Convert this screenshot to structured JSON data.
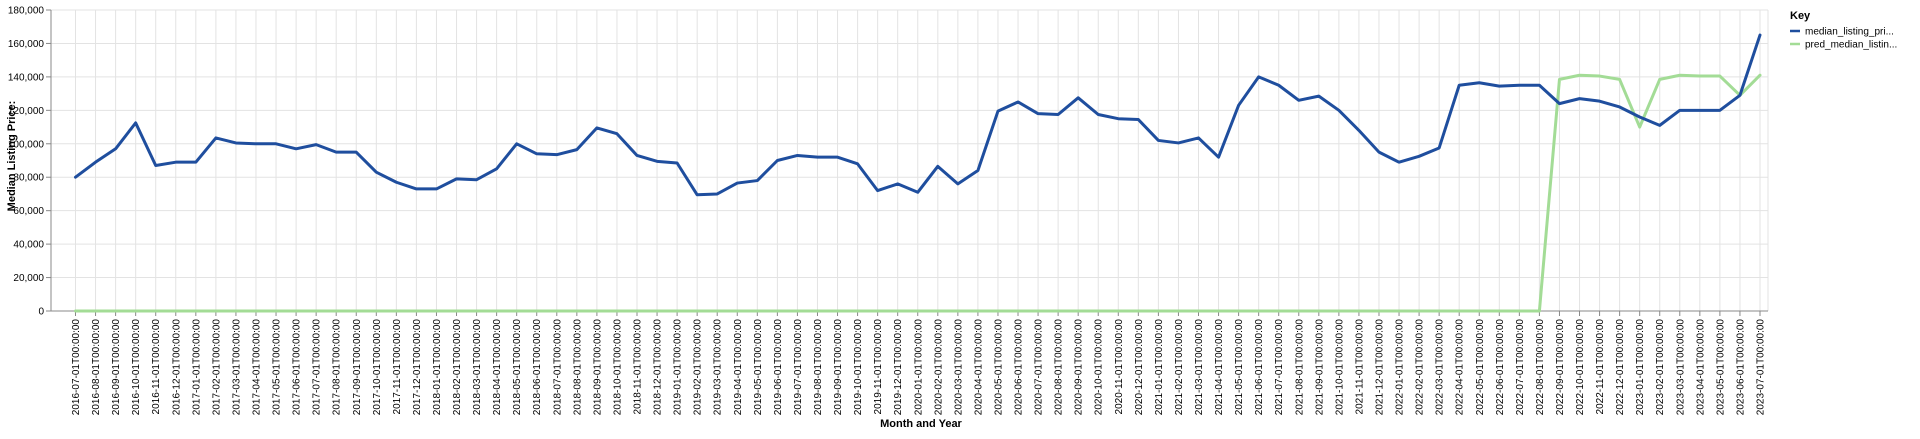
{
  "chart_data": {
    "type": "line",
    "xlabel": "Month and Year",
    "ylabel": "Median Listing Price:",
    "ylim": [
      0,
      180000
    ],
    "y_ticks": [
      "0",
      "20,000",
      "40,000",
      "60,000",
      "80,000",
      "100,000",
      "120,000",
      "140,000",
      "160,000",
      "180,000"
    ],
    "grid": true,
    "legend": {
      "title": "Key",
      "position": "top-right"
    },
    "x": [
      "2016-07-01T00:00:00",
      "2016-08-01T00:00:00",
      "2016-09-01T00:00:00",
      "2016-10-01T00:00:00",
      "2016-11-01T00:00:00",
      "2016-12-01T00:00:00",
      "2017-01-01T00:00:00",
      "2017-02-01T00:00:00",
      "2017-03-01T00:00:00",
      "2017-04-01T00:00:00",
      "2017-05-01T00:00:00",
      "2017-06-01T00:00:00",
      "2017-07-01T00:00:00",
      "2017-08-01T00:00:00",
      "2017-09-01T00:00:00",
      "2017-10-01T00:00:00",
      "2017-11-01T00:00:00",
      "2017-12-01T00:00:00",
      "2018-01-01T00:00:00",
      "2018-02-01T00:00:00",
      "2018-03-01T00:00:00",
      "2018-04-01T00:00:00",
      "2018-05-01T00:00:00",
      "2018-06-01T00:00:00",
      "2018-07-01T00:00:00",
      "2018-08-01T00:00:00",
      "2018-09-01T00:00:00",
      "2018-10-01T00:00:00",
      "2018-11-01T00:00:00",
      "2018-12-01T00:00:00",
      "2019-01-01T00:00:00",
      "2019-02-01T00:00:00",
      "2019-03-01T00:00:00",
      "2019-04-01T00:00:00",
      "2019-05-01T00:00:00",
      "2019-06-01T00:00:00",
      "2019-07-01T00:00:00",
      "2019-08-01T00:00:00",
      "2019-09-01T00:00:00",
      "2019-10-01T00:00:00",
      "2019-11-01T00:00:00",
      "2019-12-01T00:00:00",
      "2020-01-01T00:00:00",
      "2020-02-01T00:00:00",
      "2020-03-01T00:00:00",
      "2020-04-01T00:00:00",
      "2020-05-01T00:00:00",
      "2020-06-01T00:00:00",
      "2020-07-01T00:00:00",
      "2020-08-01T00:00:00",
      "2020-09-01T00:00:00",
      "2020-10-01T00:00:00",
      "2020-11-01T00:00:00",
      "2020-12-01T00:00:00",
      "2021-01-01T00:00:00",
      "2021-02-01T00:00:00",
      "2021-03-01T00:00:00",
      "2021-04-01T00:00:00",
      "2021-05-01T00:00:00",
      "2021-06-01T00:00:00",
      "2021-07-01T00:00:00",
      "2021-08-01T00:00:00",
      "2021-09-01T00:00:00",
      "2021-10-01T00:00:00",
      "2021-11-01T00:00:00",
      "2021-12-01T00:00:00",
      "2022-01-01T00:00:00",
      "2022-02-01T00:00:00",
      "2022-03-01T00:00:00",
      "2022-04-01T00:00:00",
      "2022-05-01T00:00:00",
      "2022-06-01T00:00:00",
      "2022-07-01T00:00:00",
      "2022-08-01T00:00:00",
      "2022-09-01T00:00:00",
      "2022-10-01T00:00:00",
      "2022-11-01T00:00:00",
      "2022-12-01T00:00:00",
      "2023-01-01T00:00:00",
      "2023-02-01T00:00:00",
      "2023-03-01T00:00:00",
      "2023-04-01T00:00:00",
      "2023-05-01T00:00:00",
      "2023-06-01T00:00:00",
      "2023-07-01T00:00:00"
    ],
    "series": [
      {
        "name": "median_listing_pri...",
        "color": "#1f4e9e",
        "values": [
          80000,
          89000,
          97000,
          112500,
          87000,
          89000,
          89000,
          103500,
          100500,
          100000,
          100000,
          97000,
          99500,
          95000,
          95000,
          83000,
          77000,
          73000,
          73000,
          79000,
          78500,
          85000,
          100000,
          94000,
          93500,
          96500,
          109500,
          106000,
          93000,
          89500,
          88500,
          69500,
          70000,
          76500,
          78000,
          90000,
          93000,
          92000,
          92000,
          88000,
          72000,
          76000,
          71000,
          86500,
          76000,
          84000,
          119500,
          125000,
          118000,
          117500,
          127500,
          117500,
          115000,
          114500,
          102000,
          100500,
          103500,
          92000,
          123000,
          140000,
          135000,
          126000,
          128500,
          120000,
          108000,
          95000,
          89000,
          92500,
          97500,
          135000,
          136500,
          134500,
          135000,
          135000,
          124000,
          127000,
          125500,
          122000,
          116000,
          111000,
          120000,
          120000,
          120000,
          129000,
          165000
        ]
      },
      {
        "name": "pred_median_listin...",
        "color": "#a3dc96",
        "values": [
          0,
          0,
          0,
          0,
          0,
          0,
          0,
          0,
          0,
          0,
          0,
          0,
          0,
          0,
          0,
          0,
          0,
          0,
          0,
          0,
          0,
          0,
          0,
          0,
          0,
          0,
          0,
          0,
          0,
          0,
          0,
          0,
          0,
          0,
          0,
          0,
          0,
          0,
          0,
          0,
          0,
          0,
          0,
          0,
          0,
          0,
          0,
          0,
          0,
          0,
          0,
          0,
          0,
          0,
          0,
          0,
          0,
          0,
          0,
          0,
          0,
          0,
          0,
          0,
          0,
          0,
          0,
          0,
          0,
          0,
          0,
          0,
          0,
          0,
          138500,
          141000,
          140500,
          138500,
          110000,
          138500,
          141000,
          140500,
          140500,
          129000,
          141000
        ]
      }
    ]
  }
}
